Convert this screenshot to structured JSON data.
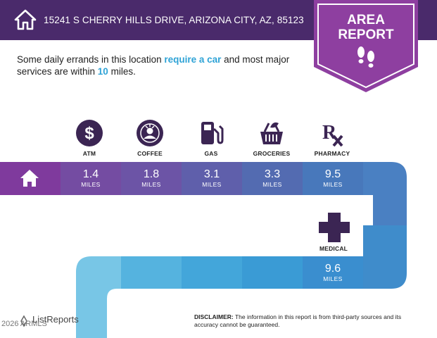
{
  "header": {
    "address": "15241 S CHERRY HILLS DRIVE, ARIZONA CITY, AZ, 85123",
    "home_icon": "house-icon",
    "bg_color": "#4a2a6b"
  },
  "badge": {
    "line1": "AREA",
    "line2": "REPORT",
    "icon": "footprints-icon",
    "color": "#8e3fa0"
  },
  "intro": {
    "part1": "Some daily errands in this location ",
    "highlight1": "require a car",
    "part2": " and most major services are within ",
    "highlight2": "10",
    "part3": " miles."
  },
  "services": [
    {
      "label": "ATM",
      "distance": "1.4",
      "unit": "MILES",
      "icon": "dollar-icon"
    },
    {
      "label": "COFFEE",
      "distance": "1.8",
      "unit": "MILES",
      "icon": "starbucks-icon"
    },
    {
      "label": "GAS",
      "distance": "3.1",
      "unit": "MILES",
      "icon": "gas-pump-icon"
    },
    {
      "label": "GROCERIES",
      "distance": "3.3",
      "unit": "MILES",
      "icon": "grocery-basket-icon"
    },
    {
      "label": "PHARMACY",
      "distance": "9.5",
      "unit": "MILES",
      "icon": "rx-icon"
    },
    {
      "label": "MEDICAL",
      "distance": "9.6",
      "unit": "MILES",
      "icon": "medical-cross-icon"
    }
  ],
  "footer": {
    "logo": "ListReports",
    "copyright": "2026 ARMLS",
    "disclaimer_label": "DISCLAIMER:",
    "disclaimer_text": " The information in this report is from third-party sources and its accuracy cannot be guaranteed."
  }
}
